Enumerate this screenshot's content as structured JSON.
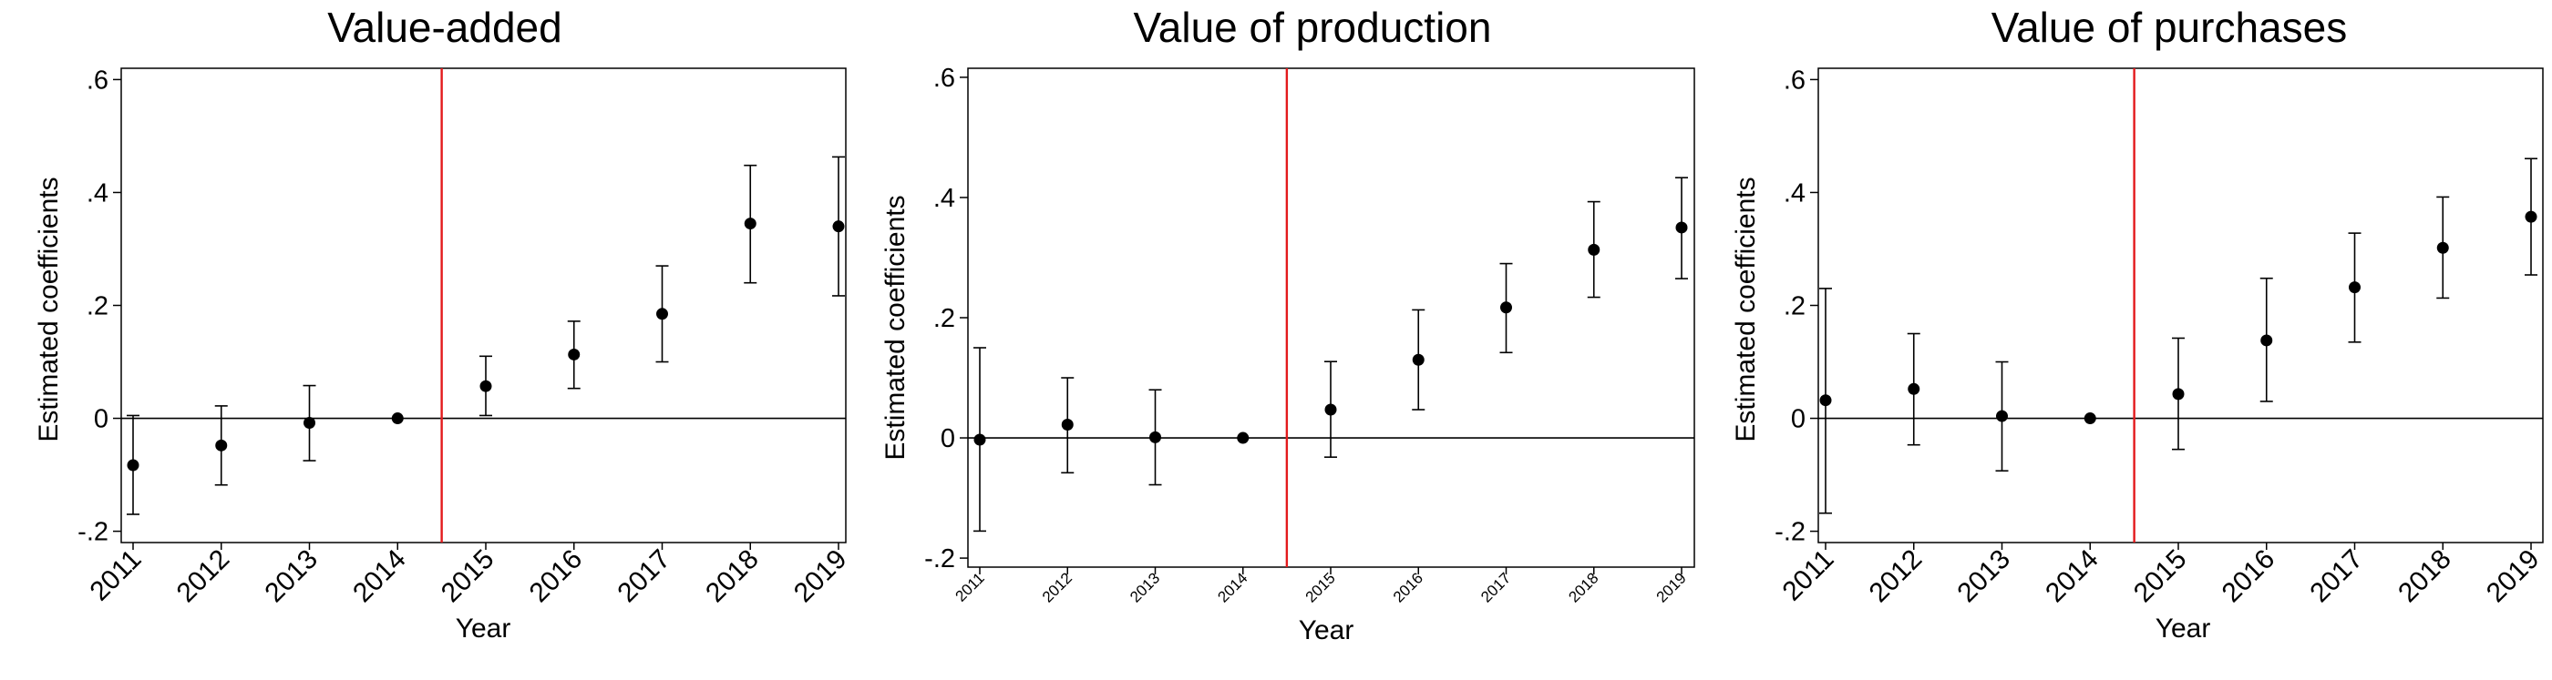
{
  "colors": {
    "point": "#000000",
    "whisker": "#000000",
    "zero_line": "#000000",
    "vline": "#e31a1c",
    "frame": "#000000"
  },
  "chart_data": [
    {
      "type": "scatter",
      "title": "Value-added",
      "xlabel": "Year",
      "ylabel": "Estimated coefficients",
      "x": [
        "2011",
        "2012",
        "2013",
        "2014",
        "2015",
        "2016",
        "2017",
        "2018",
        "2019"
      ],
      "y": [
        -0.083,
        -0.048,
        -0.008,
        0.0,
        0.057,
        0.113,
        0.185,
        0.345,
        0.34
      ],
      "ci_low": [
        -0.17,
        -0.118,
        -0.075,
        0.0,
        0.005,
        0.053,
        0.1,
        0.24,
        0.217
      ],
      "ci_high": [
        0.005,
        0.022,
        0.058,
        0.0,
        0.11,
        0.172,
        0.27,
        0.448,
        0.463
      ],
      "yticks": [
        "-.2",
        "0",
        ".2",
        ".4",
        ".6"
      ],
      "ylim": [
        -0.22,
        0.62
      ],
      "vline_between": [
        "2014",
        "2015"
      ],
      "hline": 0,
      "grid": false
    },
    {
      "type": "scatter",
      "title": "Value of production",
      "xlabel": "Year",
      "ylabel": "Estimated coefficients",
      "x": [
        "2011",
        "2012",
        "2013",
        "2014",
        "2015",
        "2016",
        "2017",
        "2018",
        "2019"
      ],
      "y": [
        -0.003,
        0.022,
        0.001,
        0.0,
        0.047,
        0.13,
        0.217,
        0.313,
        0.35
      ],
      "ci_low": [
        -0.155,
        -0.058,
        -0.078,
        0.0,
        -0.032,
        0.047,
        0.142,
        0.234,
        0.265
      ],
      "ci_high": [
        0.15,
        0.1,
        0.08,
        0.0,
        0.127,
        0.213,
        0.29,
        0.393,
        0.433
      ],
      "yticks": [
        "-.2",
        "0",
        ".2",
        ".4",
        ".6"
      ],
      "ylim": [
        -0.215,
        0.615
      ],
      "vline_between": [
        "2014",
        "2015"
      ],
      "hline": 0,
      "grid": false
    },
    {
      "type": "scatter",
      "title": "Value of purchases",
      "xlabel": "Year",
      "ylabel": "Estimated coefficients",
      "x": [
        "2011",
        "2012",
        "2013",
        "2014",
        "2015",
        "2016",
        "2017",
        "2018",
        "2019"
      ],
      "y": [
        0.032,
        0.052,
        0.004,
        0.0,
        0.043,
        0.138,
        0.232,
        0.302,
        0.357
      ],
      "ci_low": [
        -0.168,
        -0.047,
        -0.093,
        0.0,
        -0.055,
        0.03,
        0.135,
        0.213,
        0.254
      ],
      "ci_high": [
        0.23,
        0.15,
        0.1,
        0.0,
        0.142,
        0.248,
        0.328,
        0.392,
        0.46
      ],
      "yticks": [
        "-.2",
        "0",
        ".2",
        ".4",
        ".6"
      ],
      "ylim": [
        -0.22,
        0.62
      ],
      "vline_between": [
        "2014",
        "2015"
      ],
      "hline": 0,
      "grid": false
    }
  ]
}
